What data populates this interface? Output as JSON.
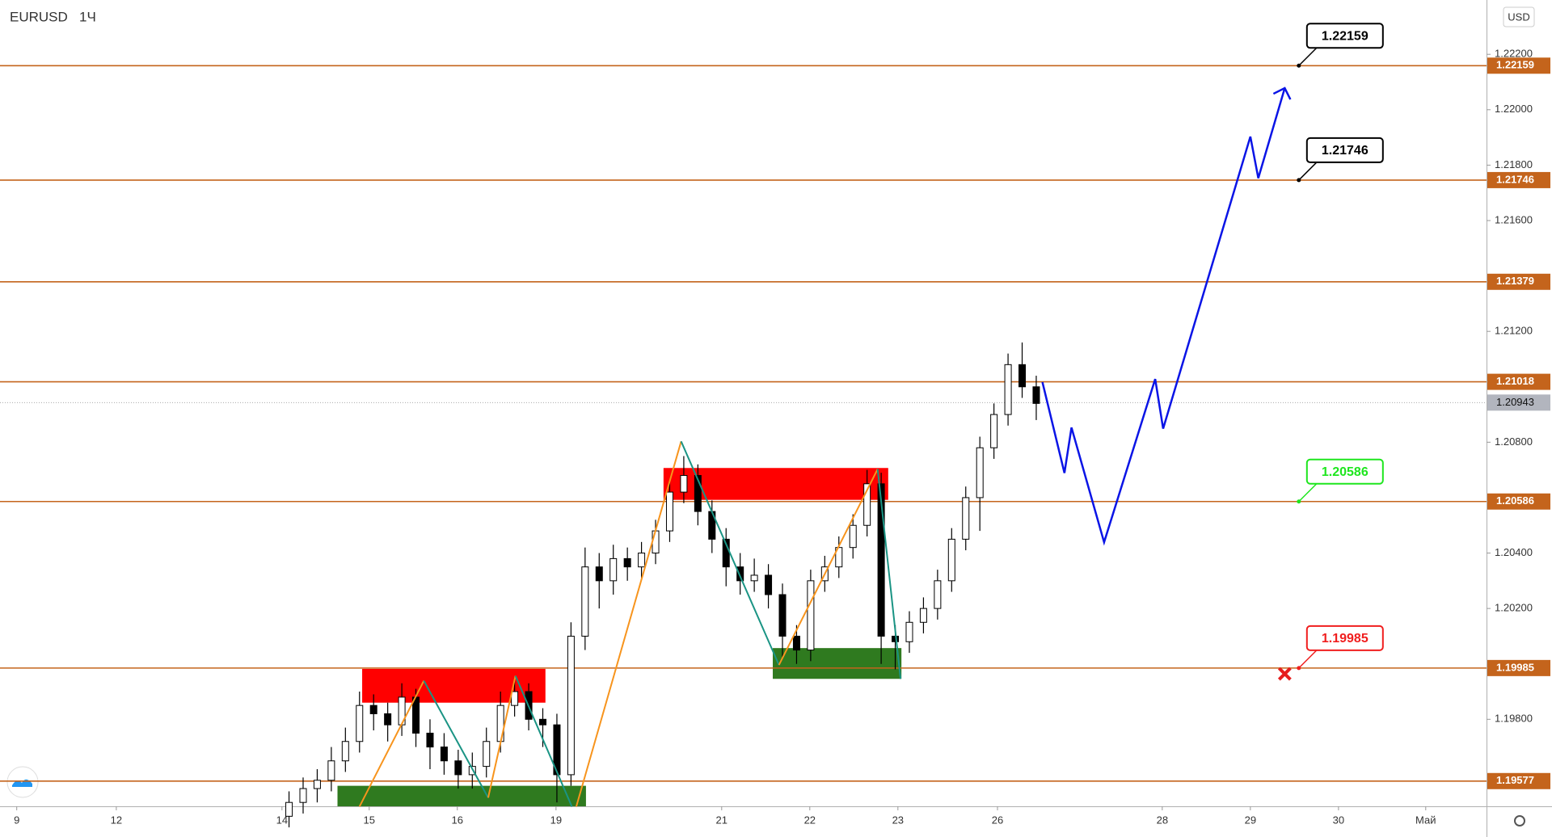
{
  "chart_data": {
    "type": "candlestick",
    "title": "EURUSD",
    "interval": "1Ч",
    "currency": "USD",
    "x": [
      0.08,
      0.24,
      0.4,
      0.56,
      0.72,
      0.88,
      1.04,
      1.2,
      1.36,
      1.52,
      1.68,
      1.84,
      2.0,
      2.16,
      2.32,
      2.48,
      2.64,
      2.8,
      2.96,
      3.12,
      3.28,
      3.44,
      3.6,
      3.76,
      3.92,
      4.08,
      4.24,
      4.4,
      4.56,
      4.72,
      4.88,
      5.04,
      5.2,
      5.36,
      5.52,
      5.68,
      5.84,
      6.0,
      6.16,
      6.32,
      6.48,
      6.64,
      6.8,
      6.96,
      7.12,
      7.28,
      7.44,
      7.6,
      7.76,
      7.92,
      8.08,
      8.24,
      8.4,
      8.56
    ],
    "open": [
      1.1945,
      1.195,
      1.1955,
      1.1958,
      1.1965,
      1.1972,
      1.1985,
      1.1982,
      1.1978,
      1.1988,
      1.1975,
      1.197,
      1.1965,
      1.196,
      1.1963,
      1.1972,
      1.1985,
      1.199,
      1.198,
      1.1978,
      1.196,
      1.201,
      1.2035,
      1.203,
      1.2038,
      1.2035,
      1.204,
      1.2048,
      1.2062,
      1.2068,
      1.2055,
      1.2045,
      1.2035,
      1.203,
      1.2032,
      1.2025,
      1.201,
      1.2005,
      1.203,
      1.2035,
      1.2042,
      1.205,
      1.2065,
      1.201,
      1.2008,
      1.2015,
      1.202,
      1.203,
      1.2045,
      1.206,
      1.2078,
      1.209,
      1.2108,
      1.21
    ],
    "high": [
      1.1954,
      1.1959,
      1.1962,
      1.197,
      1.1977,
      1.199,
      1.1989,
      1.1986,
      1.1993,
      1.1991,
      1.198,
      1.1975,
      1.1969,
      1.1968,
      1.1977,
      1.199,
      1.1995,
      1.1993,
      1.1984,
      1.1982,
      1.2015,
      1.2042,
      1.204,
      1.2043,
      1.2042,
      1.2044,
      1.2052,
      1.2066,
      1.2075,
      1.2072,
      1.2059,
      1.2049,
      1.204,
      1.2038,
      1.2036,
      1.2029,
      1.2014,
      1.2034,
      1.2039,
      1.2046,
      1.2054,
      1.207,
      1.2069,
      1.2014,
      1.2019,
      1.2024,
      1.2034,
      1.2049,
      1.2064,
      1.2082,
      1.2094,
      1.2112,
      1.2116,
      1.2104
    ],
    "low": [
      1.1941,
      1.1946,
      1.195,
      1.1954,
      1.1961,
      1.1968,
      1.1976,
      1.1972,
      1.1974,
      1.197,
      1.1962,
      1.196,
      1.1955,
      1.1955,
      1.1959,
      1.1968,
      1.1981,
      1.1976,
      1.197,
      1.195,
      1.1956,
      1.2005,
      1.202,
      1.2025,
      1.203,
      1.2031,
      1.2036,
      1.2044,
      1.2058,
      1.205,
      1.204,
      1.2028,
      1.2025,
      1.2026,
      1.202,
      1.2002,
      1.2,
      1.2001,
      1.2026,
      1.2031,
      1.2038,
      1.2046,
      1.2,
      1.1998,
      1.2004,
      1.2011,
      1.2016,
      1.2026,
      1.2041,
      1.2048,
      1.2074,
      1.2086,
      1.2096,
      1.2088
    ],
    "close": [
      1.195,
      1.1955,
      1.1958,
      1.1965,
      1.1972,
      1.1985,
      1.1982,
      1.1978,
      1.1988,
      1.1975,
      1.197,
      1.1965,
      1.196,
      1.1963,
      1.1972,
      1.1985,
      1.199,
      1.198,
      1.1978,
      1.196,
      1.201,
      1.2035,
      1.203,
      1.2038,
      1.2035,
      1.204,
      1.2048,
      1.2062,
      1.2068,
      1.2055,
      1.2045,
      1.2035,
      1.203,
      1.2032,
      1.2025,
      1.201,
      1.2005,
      1.203,
      1.2035,
      1.2042,
      1.205,
      1.2065,
      1.201,
      1.2008,
      1.2015,
      1.202,
      1.203,
      1.2045,
      1.206,
      1.2078,
      1.209,
      1.2108,
      1.21,
      1.2094
    ],
    "up_color": "#ffffff",
    "down_color": "#000000",
    "xlim": [
      -3.2,
      13.67
    ],
    "xticks": [
      {
        "value": -3.01,
        "label": "9"
      },
      {
        "value": -1.88,
        "label": "12"
      },
      {
        "value": 0,
        "label": "14"
      },
      {
        "value": 0.99,
        "label": "15"
      },
      {
        "value": 1.99,
        "label": "16"
      },
      {
        "value": 3.11,
        "label": "19"
      },
      {
        "value": 4.99,
        "label": "21"
      },
      {
        "value": 5.99,
        "label": "22"
      },
      {
        "value": 6.99,
        "label": "23"
      },
      {
        "value": 8.12,
        "label": "26"
      },
      {
        "value": 9.99,
        "label": "28"
      },
      {
        "value": 10.99,
        "label": "29"
      },
      {
        "value": 11.99,
        "label": "30"
      },
      {
        "value": 12.98,
        "label": "Май"
      }
    ],
    "ylim": [
      1.19486,
      1.22396
    ],
    "yticks": [
      {
        "value": 1.222,
        "label": "1.22200"
      },
      {
        "value": 1.22,
        "label": "1.22000"
      },
      {
        "value": 1.218,
        "label": "1.21800"
      },
      {
        "value": 1.216,
        "label": "1.21600"
      },
      {
        "value": 1.212,
        "label": "1.21200"
      },
      {
        "value": 1.208,
        "label": "1.20800"
      },
      {
        "value": 1.204,
        "label": "1.20400"
      },
      {
        "value": 1.202,
        "label": "1.20200"
      },
      {
        "value": 1.198,
        "label": "1.19800"
      }
    ],
    "levels": [
      1.22159,
      1.21746,
      1.21379,
      1.21018,
      1.20586,
      1.19985,
      1.19577
    ],
    "level_color": "#c4641c",
    "last_price": 1.20943,
    "zones": [
      {
        "x": [
          0.91,
          2.99
        ],
        "y": [
          1.1986,
          1.19982
        ],
        "color": "#ff0000"
      },
      {
        "x": [
          0.63,
          3.45
        ],
        "y": [
          1.19486,
          1.1956
        ],
        "color": "#2f7a1f"
      },
      {
        "x": [
          4.33,
          6.88
        ],
        "y": [
          1.20592,
          1.20707
        ],
        "color": "#ff0000"
      },
      {
        "x": [
          5.57,
          7.03
        ],
        "y": [
          1.19946,
          1.20057
        ],
        "color": "#2f7a1f"
      }
    ],
    "zigzag_colors": [
      "#f7941d",
      "#1a9484"
    ],
    "zigzags": [
      {
        "x": [
          0.88,
          1.61,
          2.34,
          2.65,
          3.29
        ],
        "y": [
          1.19485,
          1.19939,
          1.19517,
          1.19957,
          1.19485
        ]
      },
      {
        "x": [
          3.34,
          4.53,
          5.64,
          6.76,
          7.02
        ],
        "y": [
          1.19485,
          1.20803,
          1.19996,
          1.20703,
          1.19946
        ]
      }
    ],
    "projection": {
      "x": [
        8.63,
        8.88,
        8.96,
        9.33,
        9.91,
        10.0,
        10.99,
        11.08,
        11.38
      ],
      "y": [
        1.21017,
        1.20689,
        1.20853,
        1.20439,
        1.21028,
        1.20849,
        1.21903,
        1.21753,
        1.22078
      ],
      "color": "#0a14e6"
    },
    "callouts": [
      {
        "x": 11.54,
        "value": 1.22159,
        "color": "#000000"
      },
      {
        "x": 11.54,
        "value": 1.21746,
        "color": "#000000"
      },
      {
        "x": 11.54,
        "value": 1.20586,
        "color": "#1ee61e"
      },
      {
        "x": 11.54,
        "value": 1.19985,
        "color": "#f01e1e"
      }
    ],
    "stop_mark": {
      "x": 11.38,
      "value": 1.19964,
      "color": "#e61e1e"
    }
  }
}
